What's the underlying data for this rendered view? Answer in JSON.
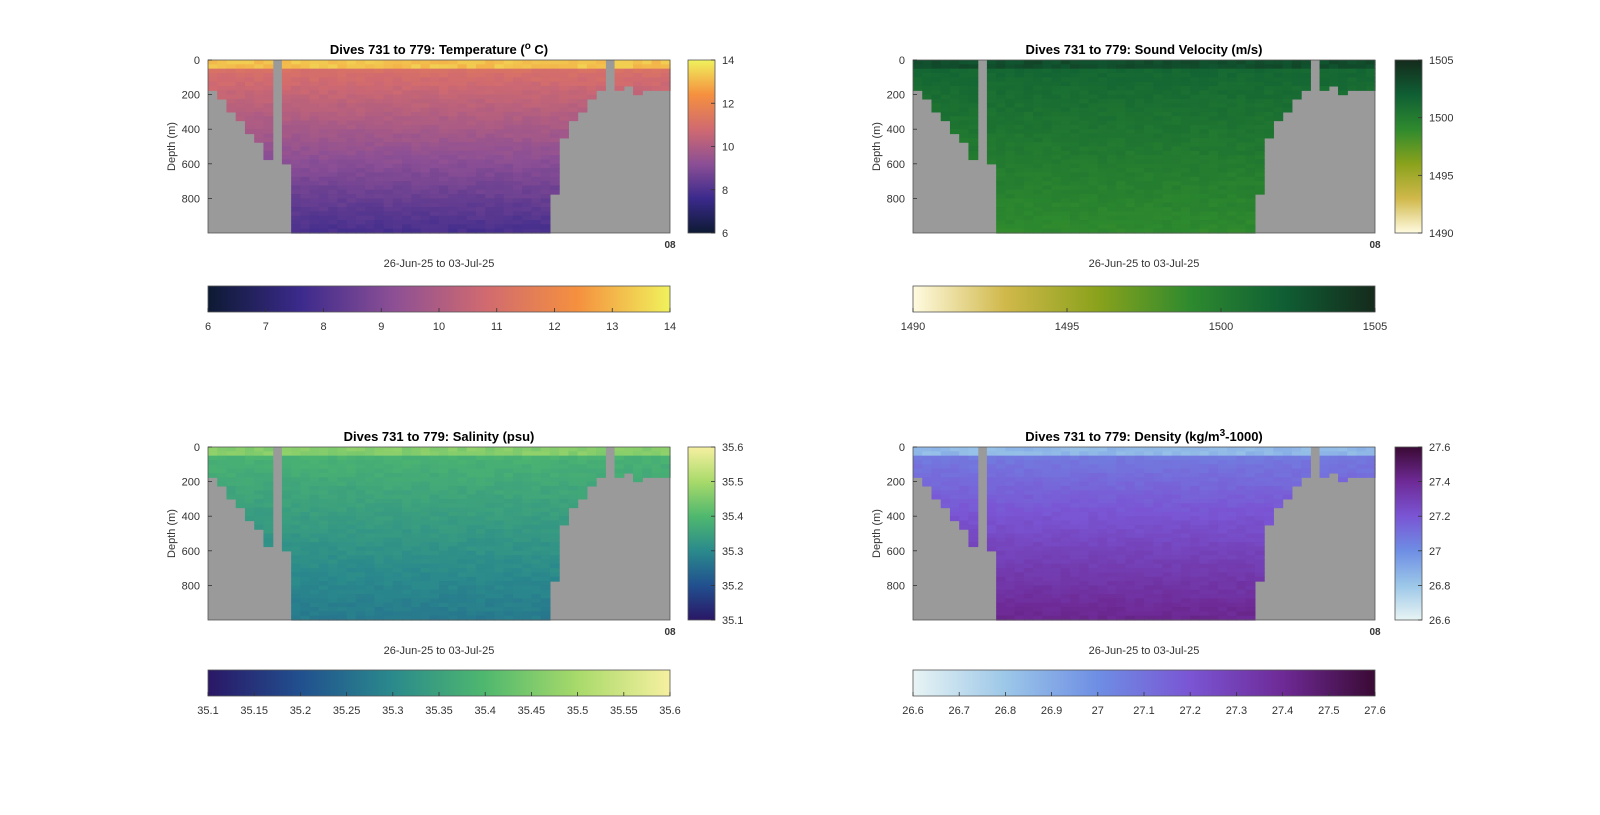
{
  "figure": {
    "background": "#ffffff"
  },
  "chart_data": [
    {
      "type": "heatmap",
      "title": "Dives 731 to 779: Temperature (° C)",
      "title_parts": [
        "Dives 731 to 779: Temperature (",
        "o",
        " C)"
      ],
      "xlabel": "26-Jun-25 to 03-Jul-25",
      "ylabel": "Depth (m)",
      "y_ticks": [
        "0",
        "200",
        "400",
        "600",
        "800"
      ],
      "ylim": [
        0,
        1000
      ],
      "y_reversed": true,
      "colorbar_vertical_ticks": [
        "6",
        "8",
        "10",
        "12",
        "14"
      ],
      "colorbar_horizontal_ticks": [
        "6",
        "7",
        "8",
        "9",
        "10",
        "11",
        "12",
        "13",
        "14"
      ],
      "clim": [
        6,
        14
      ],
      "colormap": [
        "#0d1a33",
        "#3b2a8c",
        "#8c4f95",
        "#d06a70",
        "#f5903f",
        "#f0f25c"
      ],
      "surface_value": 13.2,
      "deep_value": 7.8,
      "x_end_tick_overlap": "08",
      "seabed_color": "#9a9a9a"
    },
    {
      "type": "heatmap",
      "title": "Dives 731 to 779: Sound Velocity (m/s)",
      "xlabel": "26-Jun-25 to 03-Jul-25",
      "ylabel": "Depth (m)",
      "y_ticks": [
        "0",
        "200",
        "400",
        "600",
        "800"
      ],
      "ylim": [
        0,
        1000
      ],
      "y_reversed": true,
      "colorbar_vertical_ticks": [
        "1490",
        "1495",
        "1500",
        "1505"
      ],
      "colorbar_horizontal_ticks": [
        "1490",
        "1495",
        "1500",
        "1505"
      ],
      "clim": [
        1490,
        1505
      ],
      "colormap": [
        "#fffbe0",
        "#d0b84a",
        "#8aa21c",
        "#2e8a2e",
        "#0f5f34",
        "#152a1c"
      ],
      "surface_value": 1503,
      "deep_value": 1499,
      "x_end_tick_overlap": "08",
      "seabed_color": "#9a9a9a"
    },
    {
      "type": "heatmap",
      "title": "Dives 731 to 779: Salinity (psu)",
      "xlabel": "26-Jun-25 to 03-Jul-25",
      "ylabel": "Depth (m)",
      "y_ticks": [
        "0",
        "200",
        "400",
        "600",
        "800"
      ],
      "ylim": [
        0,
        1000
      ],
      "y_reversed": true,
      "colorbar_vertical_ticks": [
        "35.1",
        "35.2",
        "35.3",
        "35.4",
        "35.5",
        "35.6"
      ],
      "colorbar_horizontal_ticks": [
        "35.1",
        "35.15",
        "35.2",
        "35.25",
        "35.3",
        "35.35",
        "35.4",
        "35.45",
        "35.5",
        "35.55",
        "35.6"
      ],
      "clim": [
        35.1,
        35.6
      ],
      "colormap": [
        "#2a1766",
        "#21508f",
        "#2a8a8c",
        "#4fb86e",
        "#a8da6a",
        "#f6f0a0"
      ],
      "surface_value": 35.46,
      "deep_value": 35.27,
      "x_end_tick_overlap": "08",
      "seabed_color": "#9a9a9a"
    },
    {
      "type": "heatmap",
      "title": "Dives 731 to 779: Density (kg/m³-1000)",
      "title_parts": [
        "Dives 731 to 779: Density (kg/m",
        "3",
        "-1000)"
      ],
      "xlabel": "26-Jun-25 to 03-Jul-25",
      "ylabel": "Depth (m)",
      "y_ticks": [
        "0",
        "200",
        "400",
        "600",
        "800"
      ],
      "ylim": [
        0,
        1000
      ],
      "y_reversed": true,
      "colorbar_vertical_ticks": [
        "26.6",
        "26.8",
        "27",
        "27.2",
        "27.4",
        "27.6"
      ],
      "colorbar_horizontal_ticks": [
        "26.6",
        "26.7",
        "26.8",
        "26.9",
        "27",
        "27.1",
        "27.2",
        "27.3",
        "27.4",
        "27.5",
        "27.6"
      ],
      "clim": [
        26.6,
        27.6
      ],
      "colormap": [
        "#e8f4f4",
        "#9cc7e8",
        "#6e8ee4",
        "#7a55d4",
        "#6e2a96",
        "#3a0a34"
      ],
      "surface_value": 26.85,
      "deep_value": 27.42,
      "x_end_tick_overlap": "08",
      "seabed_color": "#9a9a9a"
    }
  ]
}
